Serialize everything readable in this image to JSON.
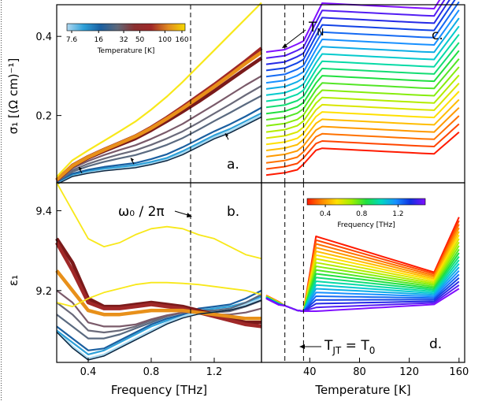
{
  "chart_data": [
    {
      "panel": "a",
      "type": "line",
      "ylabel": "σ₁ [(Ω cm)⁻¹]",
      "xlabel": "",
      "xlim": [
        0.2,
        1.5
      ],
      "ylim": [
        0.03,
        0.48
      ],
      "yticks": [
        "0.2",
        "0.4"
      ],
      "yticks_v": [
        0.2,
        0.4
      ],
      "panel_label": "a.",
      "dashed_x": 1.05,
      "arrows": [
        {
          "x": 0.34,
          "y": 0.07
        },
        {
          "x": 0.67,
          "y": 0.093
        },
        {
          "x": 1.27,
          "y": 0.155
        }
      ],
      "colorbar": {
        "title": "Temperature [K]",
        "ticks": [
          "7.6",
          "16",
          "32",
          "50",
          "100",
          "160"
        ],
        "ticks_v": [
          7.6,
          16,
          32,
          50,
          100,
          160
        ],
        "range": [
          7.6,
          160
        ],
        "stops": [
          "#b0d8f0",
          "#2ea0d8",
          "#1a5fa0",
          "#606878",
          "#8a3030",
          "#a02828",
          "#e08a20",
          "#f5d800"
        ]
      },
      "x": [
        0.2,
        0.3,
        0.4,
        0.5,
        0.6,
        0.7,
        0.8,
        0.9,
        1.0,
        1.1,
        1.2,
        1.3,
        1.4,
        1.5
      ],
      "series": [
        {
          "T": 7.6,
          "color": "#a6d8f0",
          "values": [
            0.03,
            0.05,
            0.058,
            0.064,
            0.068,
            0.072,
            0.08,
            0.09,
            0.105,
            0.125,
            0.145,
            0.16,
            0.18,
            0.2
          ]
        },
        {
          "T": 16,
          "color": "#2ea0d8",
          "values": [
            0.031,
            0.051,
            0.06,
            0.066,
            0.07,
            0.075,
            0.083,
            0.093,
            0.11,
            0.13,
            0.15,
            0.166,
            0.186,
            0.206
          ]
        },
        {
          "T": 24,
          "color": "#1a5fa0",
          "values": [
            0.032,
            0.053,
            0.063,
            0.07,
            0.075,
            0.08,
            0.09,
            0.102,
            0.12,
            0.14,
            0.16,
            0.178,
            0.198,
            0.22
          ]
        },
        {
          "T": 32,
          "color": "#5a6a80",
          "values": [
            0.033,
            0.058,
            0.072,
            0.083,
            0.092,
            0.1,
            0.112,
            0.126,
            0.143,
            0.164,
            0.186,
            0.207,
            0.229,
            0.25
          ]
        },
        {
          "T": 40,
          "color": "#6a6a7a",
          "values": [
            0.034,
            0.062,
            0.078,
            0.091,
            0.102,
            0.112,
            0.126,
            0.142,
            0.16,
            0.182,
            0.205,
            0.228,
            0.252,
            0.275
          ]
        },
        {
          "T": 50,
          "color": "#7a5a6a",
          "values": [
            0.035,
            0.067,
            0.085,
            0.1,
            0.113,
            0.125,
            0.141,
            0.159,
            0.179,
            0.203,
            0.227,
            0.252,
            0.277,
            0.3
          ]
        },
        {
          "T": 70,
          "color": "#7a1a1a",
          "values": [
            0.036,
            0.072,
            0.093,
            0.11,
            0.126,
            0.142,
            0.163,
            0.186,
            0.21,
            0.235,
            0.262,
            0.29,
            0.318,
            0.345
          ]
        },
        {
          "T": 100,
          "color": "#a02828",
          "values": [
            0.037,
            0.074,
            0.096,
            0.114,
            0.131,
            0.148,
            0.17,
            0.195,
            0.222,
            0.25,
            0.278,
            0.308,
            0.338,
            0.37
          ]
        },
        {
          "T": 130,
          "color": "#e8901a",
          "values": [
            0.038,
            0.073,
            0.095,
            0.113,
            0.13,
            0.147,
            0.168,
            0.192,
            0.218,
            0.245,
            0.273,
            0.302,
            0.332,
            0.36
          ]
        },
        {
          "T": 160,
          "color": "#f8e81a",
          "values": [
            0.045,
            0.087,
            0.112,
            0.136,
            0.16,
            0.185,
            0.215,
            0.248,
            0.285,
            0.325,
            0.365,
            0.405,
            0.445,
            0.485
          ]
        }
      ]
    },
    {
      "panel": "b",
      "type": "line",
      "ylabel": "ε₁",
      "xlabel": "Frequency [THz]",
      "xlim": [
        0.2,
        1.5
      ],
      "ylim": [
        9.02,
        9.47
      ],
      "xticks": [
        "0.4",
        "0.8",
        "1.2"
      ],
      "xticks_v": [
        0.4,
        0.8,
        1.2
      ],
      "yticks": [
        "9.2",
        "9.4"
      ],
      "yticks_v": [
        9.2,
        9.4
      ],
      "panel_label": "b.",
      "dashed_x": 1.05,
      "annotation": "ω₀ / 2π",
      "x": [
        0.2,
        0.3,
        0.4,
        0.5,
        0.6,
        0.7,
        0.8,
        0.9,
        1.0,
        1.1,
        1.2,
        1.3,
        1.4,
        1.5
      ],
      "series": [
        {
          "T": 7.6,
          "color": "#a6d8f0",
          "values": [
            9.1,
            9.06,
            9.03,
            9.04,
            9.06,
            9.08,
            9.1,
            9.12,
            9.135,
            9.145,
            9.15,
            9.155,
            9.165,
            9.18
          ]
        },
        {
          "T": 16,
          "color": "#2ea0d8",
          "values": [
            9.1,
            9.07,
            9.04,
            9.05,
            9.07,
            9.09,
            9.11,
            9.125,
            9.14,
            9.15,
            9.155,
            9.16,
            9.17,
            9.185
          ]
        },
        {
          "T": 24,
          "color": "#1a5fa0",
          "values": [
            9.11,
            9.08,
            9.05,
            9.055,
            9.075,
            9.095,
            9.115,
            9.13,
            9.14,
            9.155,
            9.16,
            9.165,
            9.18,
            9.2
          ]
        },
        {
          "T": 32,
          "color": "#5a6a80",
          "values": [
            9.14,
            9.11,
            9.08,
            9.08,
            9.09,
            9.105,
            9.12,
            9.135,
            9.145,
            9.15,
            9.15,
            9.155,
            9.17,
            9.19
          ]
        },
        {
          "T": 40,
          "color": "#6a6a7a",
          "values": [
            9.17,
            9.14,
            9.1,
            9.095,
            9.1,
            9.11,
            9.125,
            9.135,
            9.145,
            9.148,
            9.145,
            9.148,
            9.16,
            9.175
          ]
        },
        {
          "T": 50,
          "color": "#7a5a6a",
          "values": [
            9.2,
            9.17,
            9.12,
            9.11,
            9.11,
            9.115,
            9.128,
            9.138,
            9.145,
            9.145,
            9.14,
            9.14,
            9.145,
            9.155
          ]
        },
        {
          "T": 70,
          "color": "#7a1a1a",
          "values": [
            9.33,
            9.27,
            9.18,
            9.16,
            9.16,
            9.165,
            9.17,
            9.165,
            9.16,
            9.15,
            9.14,
            9.13,
            9.12,
            9.12
          ]
        },
        {
          "T": 100,
          "color": "#a02828",
          "values": [
            9.32,
            9.25,
            9.17,
            9.155,
            9.155,
            9.16,
            9.165,
            9.16,
            9.155,
            9.145,
            9.135,
            9.125,
            9.115,
            9.11
          ]
        },
        {
          "T": 130,
          "color": "#e8901a",
          "values": [
            9.25,
            9.2,
            9.15,
            9.14,
            9.14,
            9.145,
            9.15,
            9.15,
            9.15,
            9.145,
            9.14,
            9.135,
            9.13,
            9.13
          ]
        },
        {
          "T": 160,
          "color": "#f8e81a",
          "values": [
            9.47,
            9.4,
            9.33,
            9.31,
            9.32,
            9.34,
            9.355,
            9.36,
            9.355,
            9.34,
            9.33,
            9.31,
            9.29,
            9.28
          ]
        },
        {
          "T": 145,
          "color": "#f8e81a",
          "values": [
            9.17,
            9.16,
            9.18,
            9.195,
            9.205,
            9.215,
            9.22,
            9.22,
            9.218,
            9.215,
            9.21,
            9.205,
            9.2,
            9.19
          ]
        }
      ]
    },
    {
      "panel": "c",
      "type": "line",
      "xlabel": "",
      "xlim": [
        5,
        162
      ],
      "panel_label": "c.",
      "annotation": "T_N",
      "dashed_x": [
        20,
        35
      ],
      "x": [
        5,
        10,
        15,
        20,
        25,
        30,
        35,
        40,
        45,
        50,
        60,
        70,
        80,
        90,
        100,
        110,
        120,
        130,
        140,
        145,
        150,
        155,
        160
      ],
      "series_count": 21,
      "series_values": [
        0.0,
        0.05,
        0.1,
        0.15,
        0.2,
        0.25,
        0.3,
        0.35,
        0.4,
        0.45,
        0.5,
        0.55,
        0.6,
        0.65,
        0.7,
        0.75,
        0.8,
        0.85,
        0.9,
        0.95,
        1.0
      ],
      "step": 0.12
    },
    {
      "panel": "d",
      "type": "line",
      "xlabel": "Temperature [K]",
      "xlim": [
        5,
        162
      ],
      "xticks": [
        "40",
        "80",
        "120",
        "160"
      ],
      "xticks_v": [
        40,
        80,
        120,
        160
      ],
      "panel_label": "d.",
      "annotation": "T_JT = T_0",
      "dashed_x": [
        20,
        35
      ],
      "colorbar": {
        "title": "Frequency [THz]",
        "ticks": [
          "0.4",
          "0.8",
          "1.2"
        ],
        "ticks_v": [
          0.4,
          0.8,
          1.2
        ],
        "range": [
          0.2,
          1.5
        ],
        "stops": [
          "#ff1a00",
          "#ff8800",
          "#ffe000",
          "#a0f000",
          "#20e040",
          "#00d8c0",
          "#1890ff",
          "#1030e0",
          "#8010ff"
        ]
      }
    }
  ]
}
